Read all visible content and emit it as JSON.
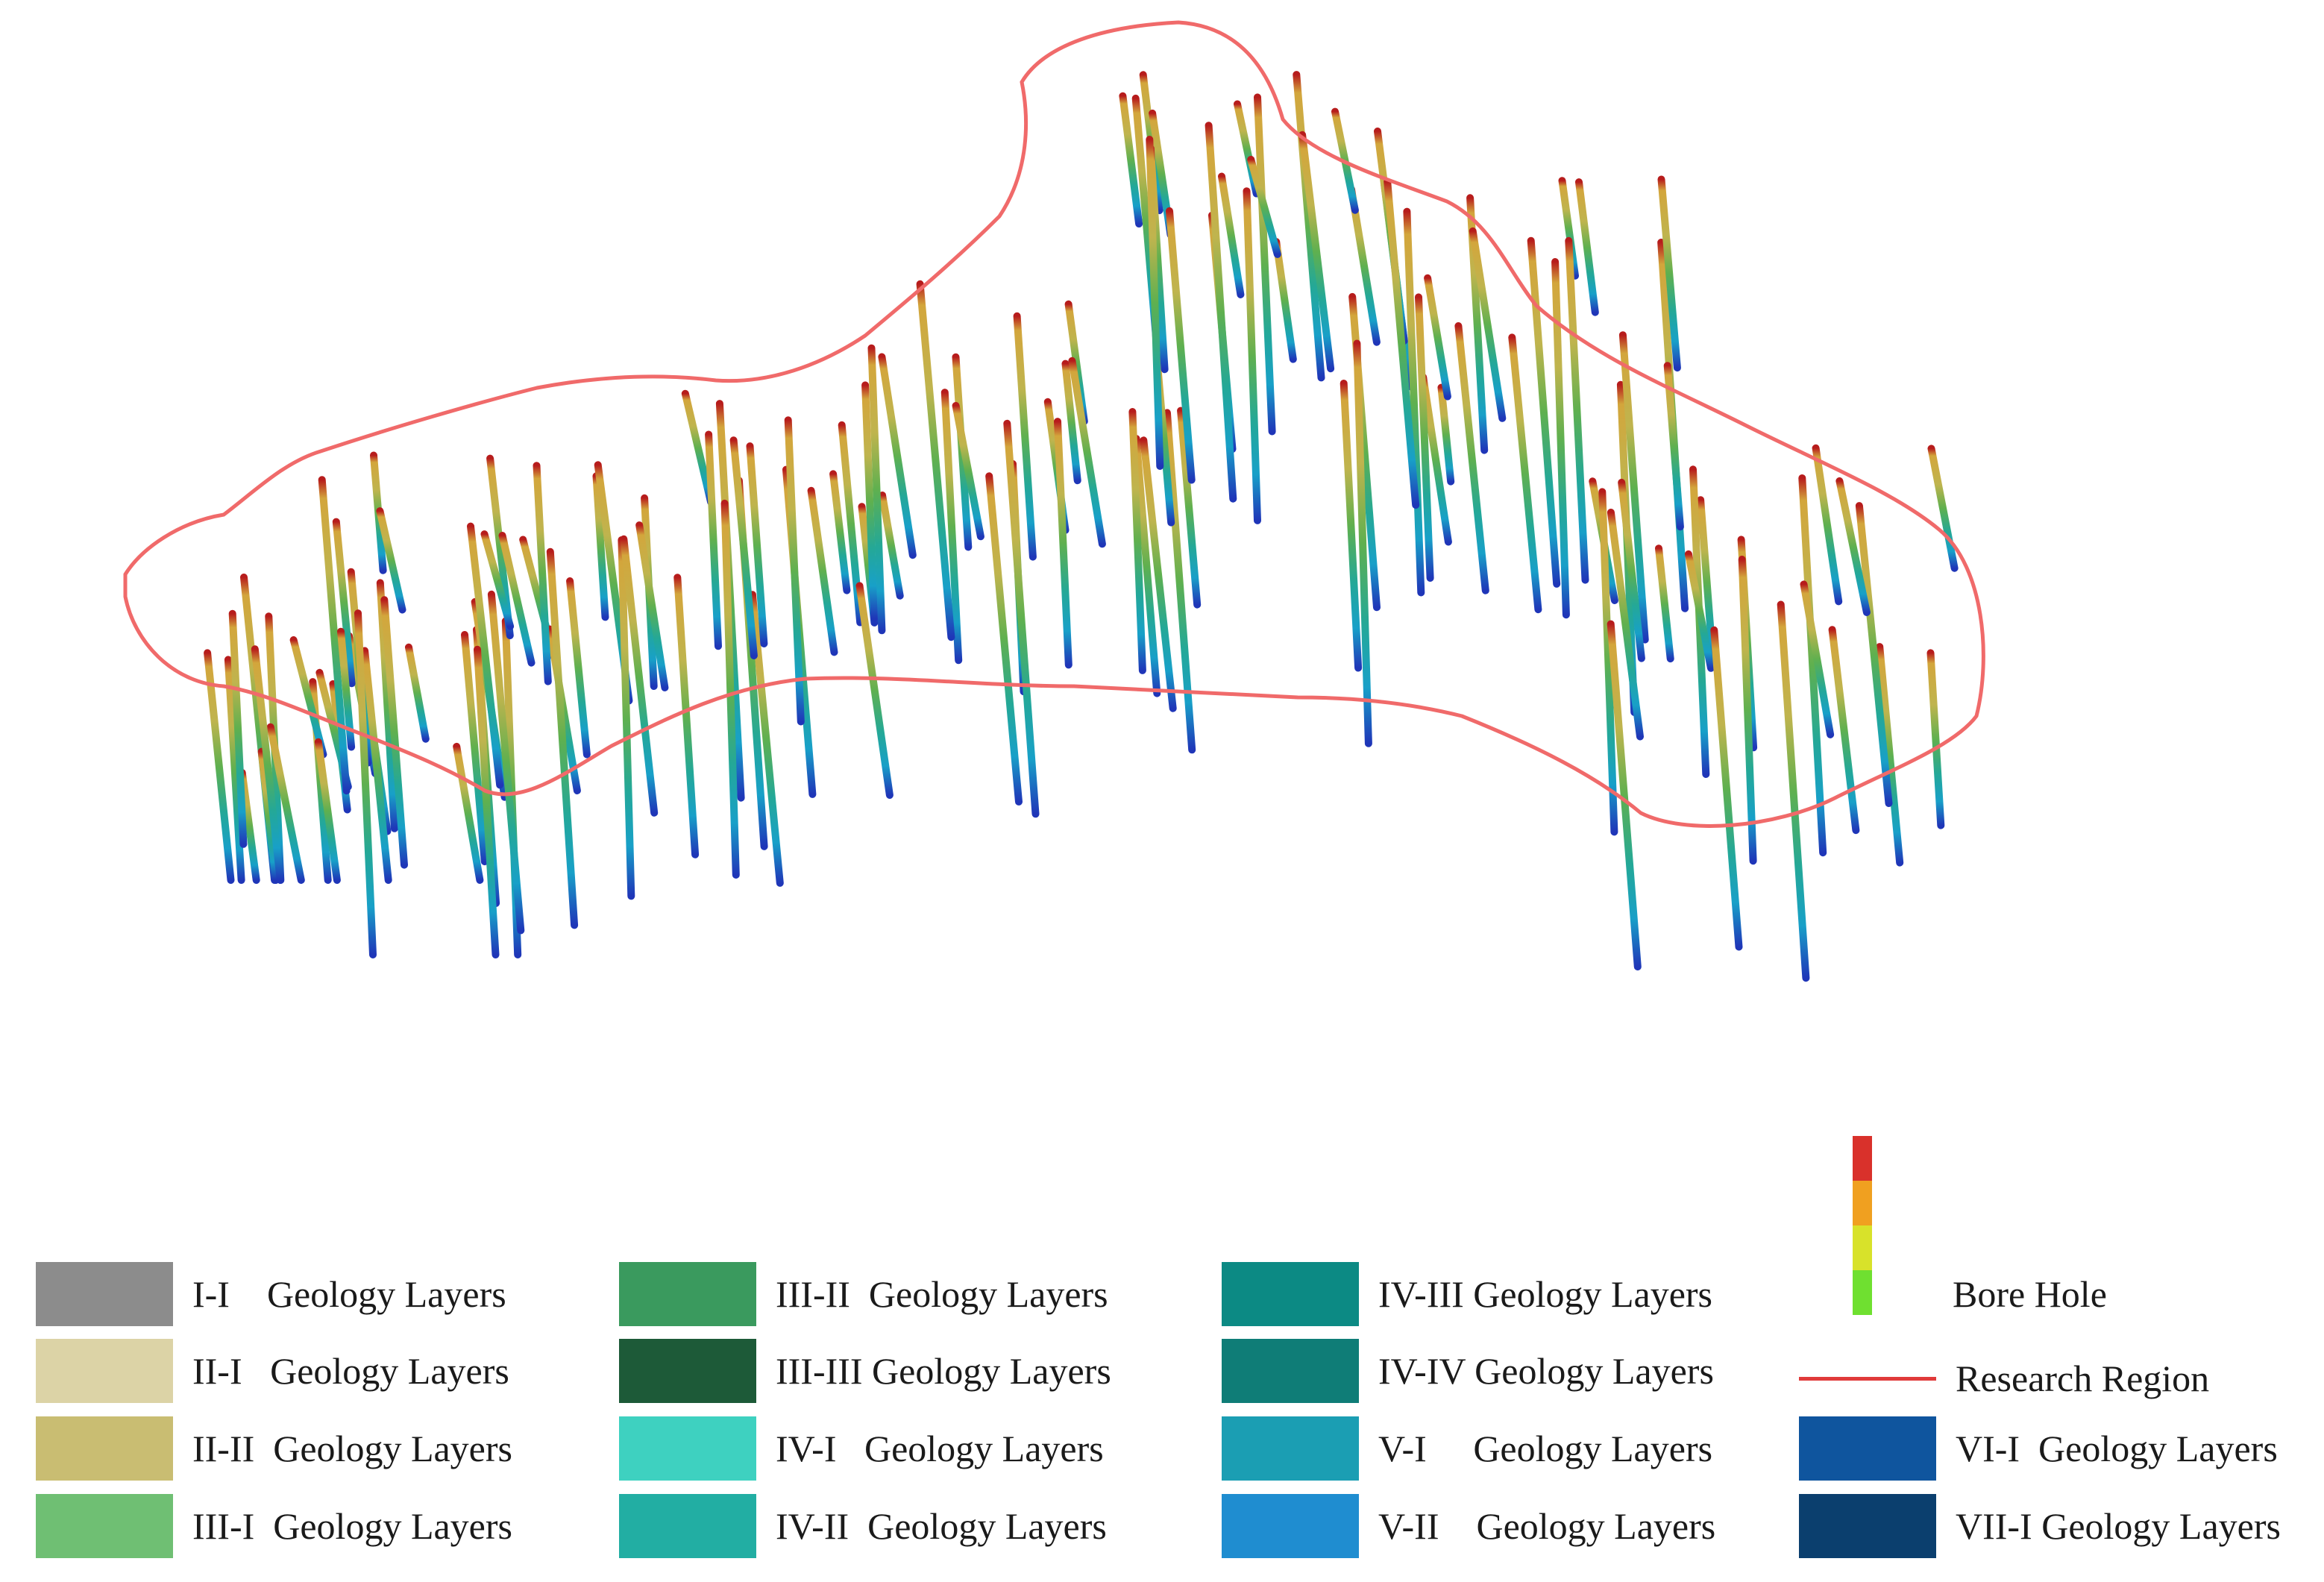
{
  "diagram": {
    "outline_color": "#f06a6a",
    "borehole_gradient": [
      "#b71c1c",
      "#c8b14a",
      "#6fb24f",
      "#2aa78f",
      "#16a7c9",
      "#1f3dbb"
    ]
  },
  "legend": {
    "layers": [
      {
        "label": "I-I    Geology Layers",
        "color": "#8c8c8c"
      },
      {
        "label": "II-I   Geology Layers",
        "color": "#dcd3a6"
      },
      {
        "label": "II-II  Geology Layers",
        "color": "#c9bd72"
      },
      {
        "label": "III-I  Geology Layers",
        "color": "#6fbf73"
      },
      {
        "label": "III-II  Geology Layers",
        "color": "#3a9a5e"
      },
      {
        "label": "III-III Geology Layers",
        "color": "#1d5a38"
      },
      {
        "label": "IV-I   Geology Layers",
        "color": "#3ed1c0"
      },
      {
        "label": "IV-II  Geology Layers",
        "color": "#22aea3"
      },
      {
        "label": "IV-III Geology Layers",
        "color": "#0c8a84"
      },
      {
        "label": "IV-IV Geology Layers",
        "color": "#0f7d77"
      },
      {
        "label": "V-I     Geology Layers",
        "color": "#1b9eb3"
      },
      {
        "label": "V-II    Geology Layers",
        "color": "#1f8dd0"
      },
      {
        "label": "VI-I  Geology Layers",
        "color": "#0f559e"
      },
      {
        "label": "VII-I Geology Layers",
        "color": "#0b3f6e"
      }
    ],
    "bore_hole": {
      "label": "Bore Hole",
      "colors": [
        "#d9312b",
        "#f0a020",
        "#d8e22a",
        "#6fe030"
      ]
    },
    "research_region": {
      "label": "Research Region",
      "color": "#e03a3a"
    }
  }
}
